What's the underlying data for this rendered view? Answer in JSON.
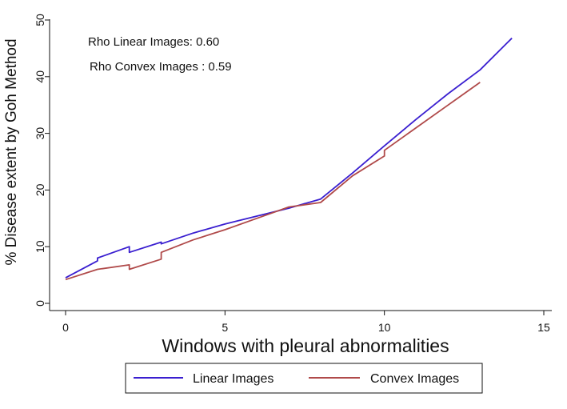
{
  "chart_data": {
    "type": "line",
    "xlabel": "Windows with pleural abnormalities",
    "ylabel": "% Disease extent by Goh Method",
    "xlim": [
      0,
      15
    ],
    "ylim": [
      0,
      50
    ],
    "x_ticks": [
      0,
      5,
      10,
      15
    ],
    "y_ticks": [
      0,
      10,
      20,
      30,
      40,
      50
    ],
    "grid": false,
    "legend_position": "bottom",
    "annotations": [
      "Rho Linear Images: 0.60",
      "Rho Convex Images : 0.59"
    ],
    "series": [
      {
        "name": "Linear Images",
        "color": "#3a1fd0",
        "x": [
          0,
          1,
          1,
          2,
          2,
          3,
          3,
          4,
          5,
          6,
          7,
          8,
          9,
          10,
          11,
          12,
          13,
          14
        ],
        "y": [
          4.5,
          7.5,
          8,
          10,
          9,
          10.8,
          10.5,
          12.4,
          14,
          15.4,
          16.8,
          18.4,
          23,
          27.8,
          32.5,
          37,
          41.2,
          46.8
        ]
      },
      {
        "name": "Convex Images",
        "color": "#b04a4a",
        "x": [
          0,
          1,
          2,
          2,
          3,
          3,
          4,
          5,
          6,
          7,
          8,
          9,
          10,
          10,
          11,
          12,
          13
        ],
        "y": [
          4.2,
          6,
          6.8,
          6,
          7.8,
          9,
          11.2,
          13,
          15,
          17,
          17.8,
          22.5,
          26,
          27,
          31,
          35,
          39
        ]
      }
    ]
  }
}
